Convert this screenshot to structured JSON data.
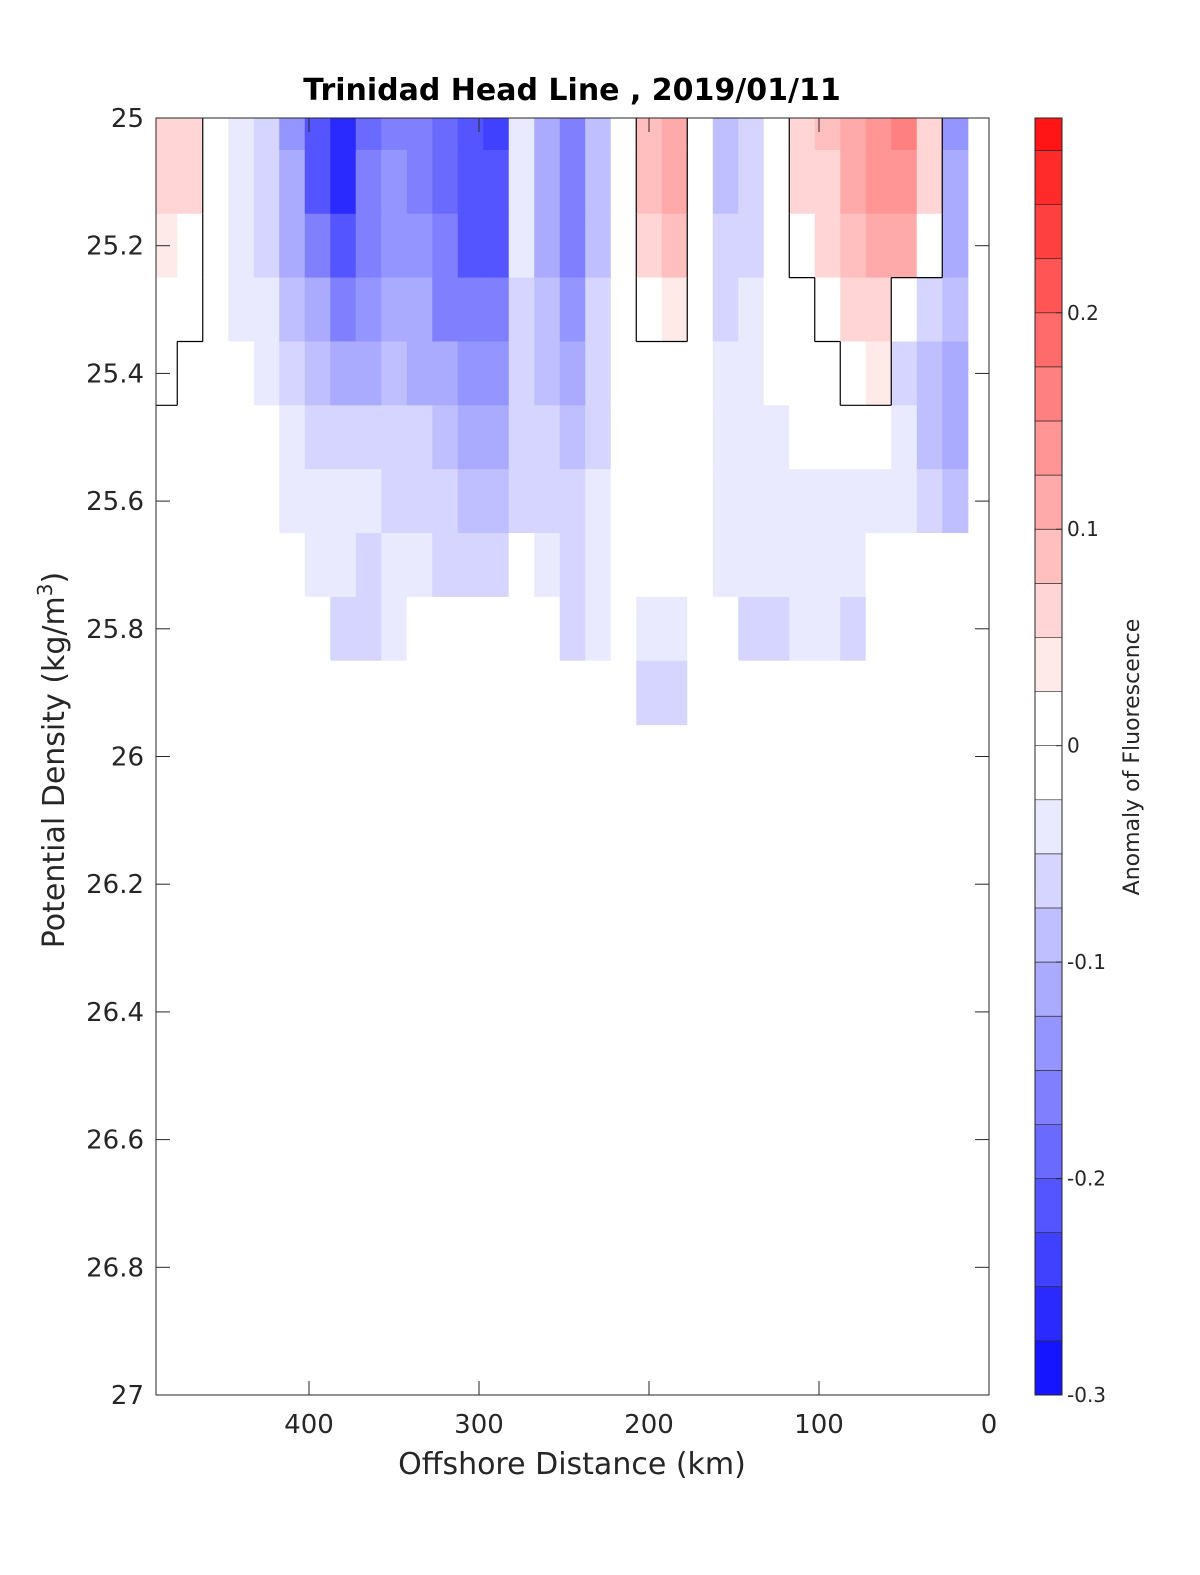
{
  "chart_data": {
    "type": "heatmap",
    "title": "Trinidad Head Line , 2019/01/11",
    "xlabel": "Offshore Distance (km)",
    "ylabel_main": "Potential Density (kg/m",
    "ylabel_sup": "3",
    "ylabel_close": ")",
    "colorbar_label": "Anomaly of Fluorescence",
    "xlim": [
      490,
      0
    ],
    "ylim": [
      25,
      27
    ],
    "y_reversed": true,
    "x_reversed": true,
    "xticks": [
      400,
      300,
      200,
      100,
      0
    ],
    "xtick_labels": [
      "400",
      "300",
      "200",
      "100",
      "0"
    ],
    "yticks": [
      25,
      25.2,
      25.4,
      25.6,
      25.8,
      26,
      26.2,
      26.4,
      26.6,
      26.8,
      27
    ],
    "ytick_labels": [
      "25",
      "25.2",
      "25.4",
      "25.6",
      "25.8",
      "26",
      "26.2",
      "26.4",
      "26.6",
      "26.8",
      "27"
    ],
    "clim": [
      -0.3,
      0.29
    ],
    "cbar_ticks": [
      0.2,
      0.1,
      0,
      -0.1,
      -0.2,
      -0.3
    ],
    "cbar_tick_labels": [
      "0.2",
      "0.1",
      "0",
      "-0.1",
      "-0.2",
      "-0.3"
    ],
    "contour_step": 0.025,
    "colors": {
      "positive": "#ff0000",
      "negative": "#0000ff",
      "zero": "#ffffff",
      "contour_line": "#000000"
    },
    "x": [
      485,
      470,
      455,
      440,
      425,
      410,
      395,
      380,
      365,
      350,
      335,
      320,
      305,
      290,
      275,
      260,
      245,
      230,
      215,
      200,
      185,
      170,
      155,
      140,
      125,
      110,
      95,
      80,
      65,
      50,
      35,
      20
    ],
    "y": [
      25.0,
      25.1,
      25.2,
      25.3,
      25.4,
      25.5,
      25.6,
      25.7,
      25.8,
      25.9
    ],
    "z": [
      [
        0.06,
        0.07,
        0.0,
        -0.03,
        -0.06,
        -0.13,
        -0.22,
        -0.27,
        -0.19,
        -0.15,
        -0.16,
        -0.18,
        -0.22,
        -0.23,
        -0.03,
        -0.11,
        -0.16,
        -0.09,
        0.0,
        0.08,
        0.1,
        0.0,
        -0.08,
        -0.07,
        0.0,
        0.06,
        0.08,
        0.12,
        0.14,
        0.16,
        0.06,
        -0.14
      ],
      [
        0.05,
        0.05,
        0.0,
        -0.03,
        -0.06,
        -0.12,
        -0.2,
        -0.25,
        -0.17,
        -0.14,
        -0.15,
        -0.18,
        -0.22,
        -0.22,
        -0.03,
        -0.11,
        -0.16,
        -0.09,
        0.0,
        0.08,
        0.1,
        0.0,
        -0.08,
        -0.07,
        0.0,
        0.05,
        0.07,
        0.11,
        0.13,
        0.14,
        0.05,
        -0.12
      ],
      [
        0.03,
        0.02,
        -0.01,
        -0.03,
        -0.05,
        -0.1,
        -0.16,
        -0.21,
        -0.15,
        -0.13,
        -0.14,
        -0.17,
        -0.2,
        -0.2,
        -0.04,
        -0.1,
        -0.15,
        -0.08,
        -0.01,
        0.06,
        0.08,
        0.0,
        -0.06,
        -0.05,
        0.0,
        0.02,
        0.05,
        0.08,
        0.1,
        0.1,
        0.02,
        -0.1
      ],
      [
        0.02,
        0.01,
        -0.02,
        -0.03,
        -0.04,
        -0.08,
        -0.11,
        -0.15,
        -0.13,
        -0.11,
        -0.12,
        -0.15,
        -0.17,
        -0.17,
        -0.05,
        -0.09,
        -0.13,
        -0.07,
        -0.01,
        0.02,
        0.03,
        -0.01,
        -0.05,
        -0.04,
        -0.01,
        0.0,
        0.02,
        0.05,
        0.06,
        0.0,
        -0.05,
        -0.08
      ],
      [
        0.01,
        0.0,
        -0.02,
        -0.02,
        -0.03,
        -0.05,
        -0.08,
        -0.1,
        -0.1,
        -0.09,
        -0.1,
        -0.12,
        -0.14,
        -0.14,
        -0.06,
        -0.08,
        -0.11,
        -0.06,
        -0.01,
        0.0,
        0.0,
        -0.02,
        -0.04,
        -0.04,
        -0.02,
        -0.01,
        0.0,
        0.02,
        0.03,
        -0.05,
        -0.08,
        -0.1
      ],
      [
        0.0,
        0.0,
        0.0,
        -0.01,
        -0.02,
        -0.04,
        -0.05,
        -0.06,
        -0.06,
        -0.06,
        -0.07,
        -0.09,
        -0.11,
        -0.11,
        -0.06,
        -0.07,
        -0.09,
        -0.05,
        -0.02,
        -0.01,
        0.0,
        -0.02,
        -0.04,
        -0.04,
        -0.03,
        -0.02,
        -0.02,
        -0.01,
        0.0,
        -0.04,
        -0.09,
        -0.1
      ],
      [
        0.0,
        0.0,
        0.0,
        0.0,
        0.0,
        -0.03,
        -0.04,
        -0.04,
        -0.04,
        -0.05,
        -0.06,
        -0.07,
        -0.09,
        -0.09,
        -0.06,
        -0.06,
        -0.07,
        -0.04,
        -0.02,
        -0.01,
        0.0,
        -0.02,
        -0.03,
        -0.04,
        -0.04,
        -0.03,
        -0.04,
        -0.03,
        -0.03,
        -0.04,
        -0.06,
        -0.08
      ],
      [
        0.0,
        0.0,
        0.0,
        0.0,
        0.0,
        -0.02,
        -0.03,
        -0.04,
        -0.05,
        -0.04,
        -0.04,
        -0.05,
        -0.06,
        -0.05,
        0.0,
        -0.04,
        -0.05,
        -0.04,
        -0.02,
        -0.02,
        -0.01,
        -0.02,
        -0.03,
        -0.03,
        -0.04,
        -0.03,
        -0.04,
        -0.03,
        -0.02,
        0.0,
        0.0,
        0.0
      ],
      [
        0.0,
        0.0,
        0.0,
        0.0,
        0.0,
        0.0,
        -0.02,
        -0.05,
        -0.05,
        -0.04,
        0.0,
        0.0,
        0.0,
        0.0,
        0.0,
        0.0,
        -0.05,
        -0.04,
        -0.02,
        -0.03,
        -0.03,
        -0.02,
        -0.02,
        -0.05,
        -0.05,
        -0.03,
        -0.04,
        -0.05,
        0.0,
        0.0,
        0.0,
        0.0
      ],
      [
        0.0,
        0.0,
        0.0,
        0.0,
        0.0,
        0.0,
        0.0,
        0.0,
        0.0,
        0.0,
        0.0,
        0.0,
        0.0,
        0.0,
        0.0,
        0.0,
        0.0,
        0.0,
        0.0,
        -0.06,
        -0.06,
        0.0,
        0.0,
        0.0,
        0.0,
        0.0,
        0.0,
        0.0,
        0.0,
        0.0,
        0.0,
        0.0
      ]
    ]
  }
}
